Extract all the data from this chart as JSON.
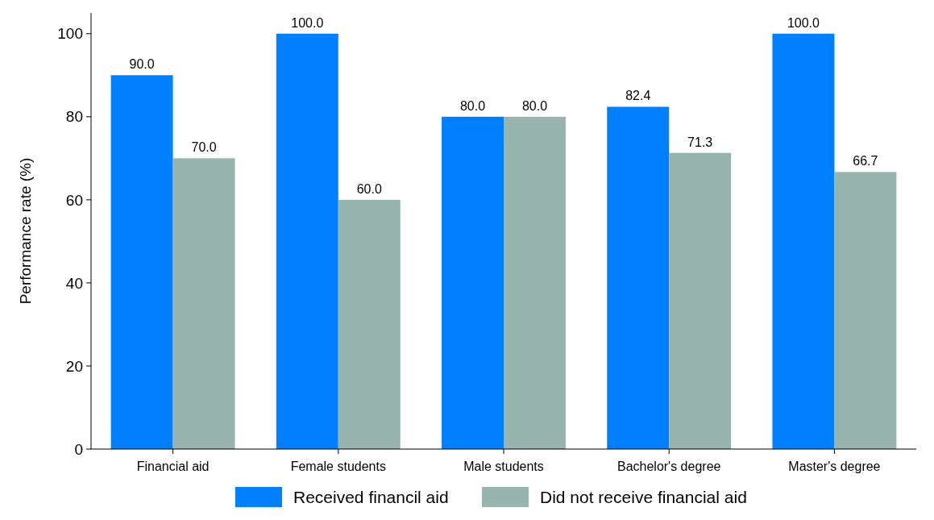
{
  "chart_data": {
    "type": "bar",
    "ylabel": "Performance rate (%)",
    "categories": [
      "Financial aid",
      "Female students",
      "Male students",
      "Bachelor's degree",
      "Master's degree"
    ],
    "series": [
      {
        "name": "Received financil aid",
        "color": "#0080ff",
        "values": [
          90.0,
          100.0,
          80.0,
          82.4,
          100.0
        ],
        "value_labels": [
          "90.0",
          "100.0",
          "80.0",
          "82.4",
          "100.0"
        ]
      },
      {
        "name": "Did not receive financial aid",
        "color": "#98b4ae",
        "values": [
          70.0,
          60.0,
          80.0,
          71.3,
          66.7
        ],
        "value_labels": [
          "70.0",
          "60.0",
          "80.0",
          "71.3",
          "66.7"
        ]
      }
    ],
    "ylim": [
      0,
      105
    ],
    "yticks": [
      0,
      20,
      40,
      60,
      80,
      100
    ],
    "grid": false,
    "legend": "bottom"
  }
}
